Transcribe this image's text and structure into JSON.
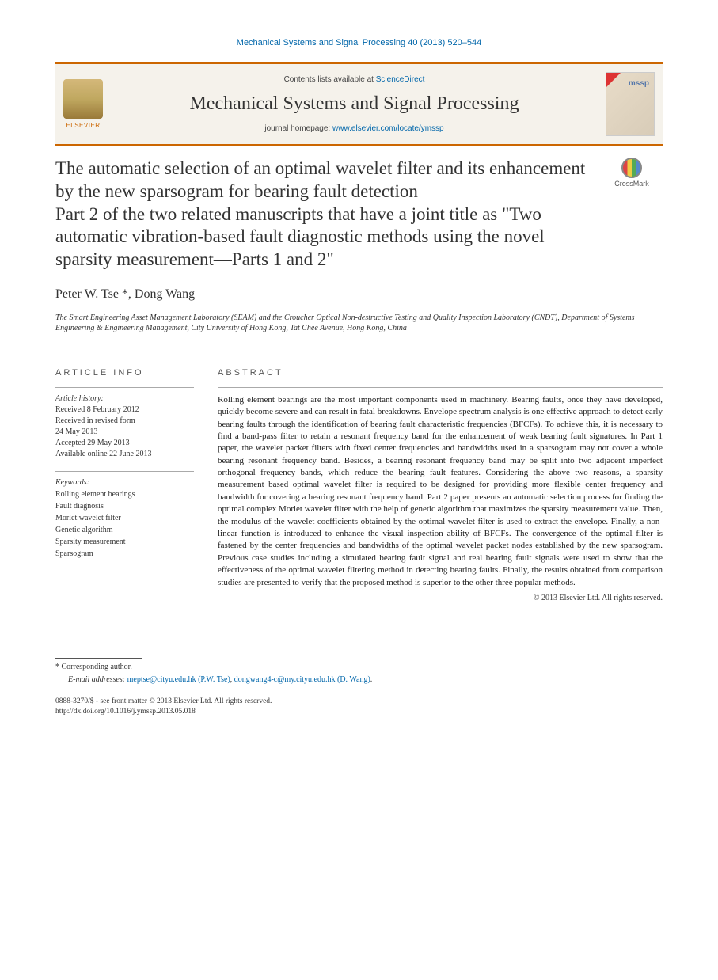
{
  "citation": "Mechanical Systems and Signal Processing 40 (2013) 520–544",
  "banner": {
    "contents_prefix": "Contents lists available at ",
    "contents_link": "ScienceDirect",
    "journal_name": "Mechanical Systems and Signal Processing",
    "homepage_prefix": "journal homepage: ",
    "homepage_url": "www.elsevier.com/locate/ymssp",
    "elsevier_label": "ELSEVIER",
    "cover_abbrev": "mssp"
  },
  "crossmark_label": "CrossMark",
  "title": {
    "line1": "The automatic selection of an optimal wavelet filter and its enhancement by the new sparsogram for bearing fault detection",
    "line2": "Part 2 of the two related manuscripts that have a joint title as \"Two automatic vibration-based fault diagnostic methods using the novel sparsity measurement—Parts 1 and 2\""
  },
  "authors": "Peter W. Tse *, Dong Wang",
  "affiliation": "The Smart Engineering Asset Management Laboratory (SEAM) and the Croucher Optical Non-destructive Testing and Quality Inspection Laboratory (CNDT), Department of Systems Engineering & Engineering Management, City University of Hong Kong, Tat Chee Avenue, Hong Kong, China",
  "articleinfo": {
    "label": "ARTICLE INFO",
    "history_head": "Article history:",
    "history": "Received 8 February 2012\nReceived in revised form\n24 May 2013\nAccepted 29 May 2013\nAvailable online 22 June 2013",
    "keywords_head": "Keywords:",
    "keywords": "Rolling element bearings\nFault diagnosis\nMorlet wavelet filter\nGenetic algorithm\nSparsity measurement\nSparsogram"
  },
  "abstract": {
    "label": "ABSTRACT",
    "text": "Rolling element bearings are the most important components used in machinery. Bearing faults, once they have developed, quickly become severe and can result in fatal breakdowns. Envelope spectrum analysis is one effective approach to detect early bearing faults through the identification of bearing fault characteristic frequencies (BFCFs). To achieve this, it is necessary to find a band-pass filter to retain a resonant frequency band for the enhancement of weak bearing fault signatures. In Part 1 paper, the wavelet packet filters with fixed center frequencies and bandwidths used in a sparsogram may not cover a whole bearing resonant frequency band. Besides, a bearing resonant frequency band may be split into two adjacent imperfect orthogonal frequency bands, which reduce the bearing fault features. Considering the above two reasons, a sparsity measurement based optimal wavelet filter is required to be designed for providing more flexible center frequency and bandwidth for covering a bearing resonant frequency band. Part 2 paper presents an automatic selection process for finding the optimal complex Morlet wavelet filter with the help of genetic algorithm that maximizes the sparsity measurement value. Then, the modulus of the wavelet coefficients obtained by the optimal wavelet filter is used to extract the envelope. Finally, a non-linear function is introduced to enhance the visual inspection ability of BFCFs. The convergence of the optimal filter is fastened by the center frequencies and bandwidths of the optimal wavelet packet nodes established by the new sparsogram. Previous case studies including a simulated bearing fault signal and real bearing fault signals were used to show that the effectiveness of the optimal wavelet filtering method in detecting bearing faults. Finally, the results obtained from comparison studies are presented to verify that the proposed method is superior to the other three popular methods.",
    "copyright": "© 2013 Elsevier Ltd. All rights reserved."
  },
  "footer": {
    "corr": "* Corresponding author.",
    "email_label": "E-mail addresses: ",
    "email1": "meptse@cityu.edu.hk (P.W. Tse)",
    "email2": "dongwang4-c@my.cityu.edu.hk (D. Wang)",
    "issn": "0888-3270/$ - see front matter © 2013 Elsevier Ltd. All rights reserved.",
    "doi": "http://dx.doi.org/10.1016/j.ymssp.2013.05.018"
  }
}
